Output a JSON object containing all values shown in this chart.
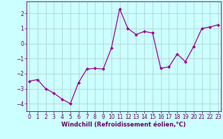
{
  "x": [
    0,
    1,
    2,
    3,
    4,
    5,
    6,
    7,
    8,
    9,
    10,
    11,
    12,
    13,
    14,
    15,
    16,
    17,
    18,
    19,
    20,
    21,
    22,
    23
  ],
  "y": [
    -2.5,
    -2.4,
    -3.0,
    -3.3,
    -3.7,
    -4.0,
    -2.6,
    -1.7,
    -1.65,
    -1.7,
    -0.3,
    2.3,
    1.0,
    0.6,
    0.8,
    0.7,
    -1.65,
    -1.55,
    -0.7,
    -1.2,
    -0.2,
    1.0,
    1.1,
    1.25
  ],
  "line_color": "#990099",
  "marker": "D",
  "marker_size": 2.0,
  "linewidth": 0.9,
  "bg_color": "#ccffff",
  "grid_color": "#aacccc",
  "xlabel": "Windchill (Refroidissement éolien,°C)",
  "xlabel_color": "#660066",
  "xlabel_fontsize": 6.0,
  "tick_color": "#660066",
  "tick_fontsize": 5.5,
  "yticks": [
    -4,
    -3,
    -2,
    -1,
    0,
    1,
    2
  ],
  "xticks": [
    0,
    1,
    2,
    3,
    4,
    5,
    6,
    7,
    8,
    9,
    10,
    11,
    12,
    13,
    14,
    15,
    16,
    17,
    18,
    19,
    20,
    21,
    22,
    23
  ],
  "xlim": [
    -0.3,
    23.3
  ],
  "ylim": [
    -4.5,
    2.8
  ]
}
